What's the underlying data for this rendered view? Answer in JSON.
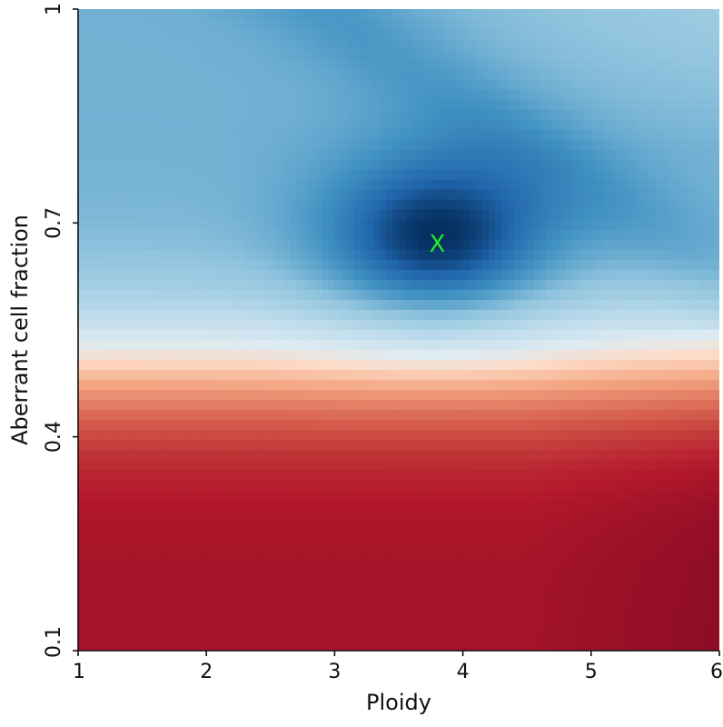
{
  "chart_data": {
    "type": "heatmap",
    "title": "",
    "xlabel": "Ploidy",
    "ylabel": "Aberrant cell fraction",
    "xlim": [
      1,
      6
    ],
    "ylim": [
      0.1,
      1
    ],
    "x_ticks": [
      {
        "value": 1,
        "label": "1"
      },
      {
        "value": 2,
        "label": "2"
      },
      {
        "value": 3,
        "label": "3"
      },
      {
        "value": 4,
        "label": "4"
      },
      {
        "value": 5,
        "label": "5"
      },
      {
        "value": 6,
        "label": "6"
      }
    ],
    "y_ticks": [
      {
        "value": 0.1,
        "label": "0.1"
      },
      {
        "value": 0.4,
        "label": "0.4"
      },
      {
        "value": 0.7,
        "label": "0.7"
      },
      {
        "value": 1,
        "label": "1"
      }
    ],
    "colormap": "RdBu",
    "colorbar": false,
    "grid": false,
    "optimum": {
      "x": 3.8,
      "y": 0.67,
      "label": "X",
      "color": "#22ee22"
    }
  }
}
